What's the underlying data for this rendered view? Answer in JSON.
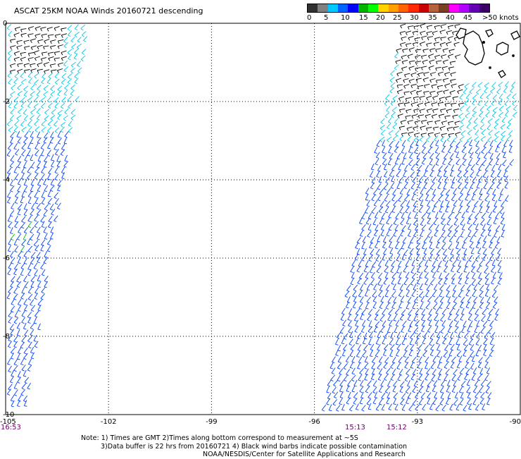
{
  "title": "ASCAT 25KM NOAA Winds 20160721 descending",
  "colorbar": {
    "colors": [
      "#303030",
      "#808080",
      "#00c8ff",
      "#0064ff",
      "#0000ff",
      "#00b400",
      "#00ff00",
      "#ffd200",
      "#ffa000",
      "#ff6400",
      "#ff2800",
      "#c80000",
      "#b4643c",
      "#784020",
      "#ff00ff",
      "#b400ff",
      "#6400b4",
      "#3c0064"
    ],
    "labels": [
      "0",
      "5",
      "10",
      "15",
      "20",
      "25",
      "30",
      "35",
      "40",
      "45",
      ">50 knots"
    ]
  },
  "map": {
    "x_ticks": [
      "-105",
      "-102",
      "-99",
      "-96",
      "-93",
      "-90"
    ],
    "y_ticks": [
      "0",
      "-2",
      "-4",
      "-6",
      "-8",
      "-10"
    ],
    "pass_times": [
      "16:53",
      "15:13",
      "15:12"
    ]
  },
  "notes": [
    "Note: 1) Times are GMT 2)Times along bottom correspond to measurement at ~5S",
    "3)Data buffer is 22 hrs from 20160721 4) Black wind barbs indicate possible contamination",
    "NOAA/NESDIS/Center for Satellite Applications and Research"
  ],
  "legend_colors": {
    "contaminated": "#000000",
    "light": "#00c8e6",
    "moderate": "#0040ff",
    "fresh": "#00c000",
    "land": "#000000"
  }
}
